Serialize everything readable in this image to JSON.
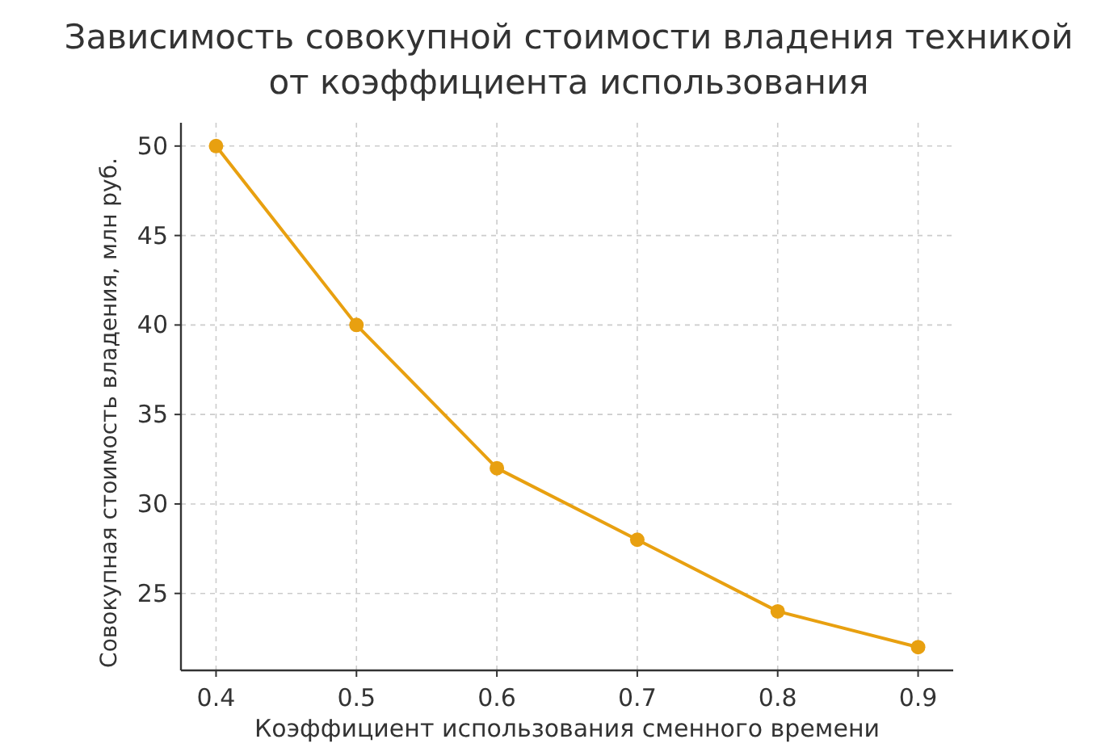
{
  "chart_data": {
    "type": "line",
    "title": "Зависимость совокупной стоимости владения техникой\nот коэффициента использования",
    "xlabel": "Коэффициент использования сменного времени",
    "ylabel": "Совокупная стоимость владения, млн руб.",
    "x": [
      0.4,
      0.5,
      0.6,
      0.7,
      0.8,
      0.9
    ],
    "series": [
      {
        "color": "#e8a010",
        "values": [
          50,
          40,
          32,
          28,
          24,
          22
        ]
      }
    ],
    "xlim": [
      0.375,
      0.925
    ],
    "xticks": [
      0.4,
      0.5,
      0.6,
      0.7,
      0.8,
      0.9
    ],
    "ylim": [
      20.7,
      51.3
    ],
    "yticks": [
      25,
      30,
      35,
      40,
      45,
      50
    ],
    "grid": true,
    "marker": "circle",
    "line_style": "solid"
  }
}
